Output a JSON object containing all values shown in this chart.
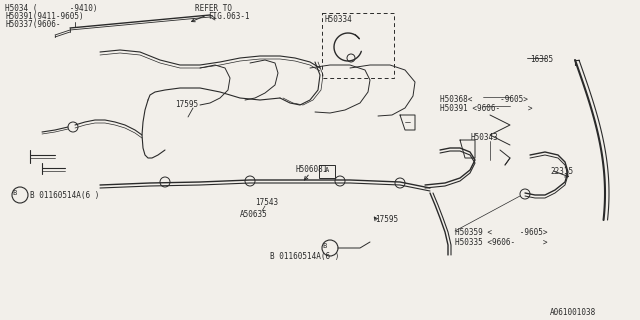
{
  "bg_color": "#f2efea",
  "line_color": "#2a2a2a",
  "text_color": "#2a2a2a",
  "fig_width": 6.4,
  "fig_height": 3.2,
  "dpi": 100,
  "labels": {
    "top_left": "H5034 (       -9410)",
    "top_left2": "H50391(9411-9605)",
    "top_left3": "H50337(9606-",
    "refer_to": "REFER TO",
    "fig_ref": "FIG.063-1",
    "h50334": "H50334",
    "h16385": "16385",
    "h50368": "H50368<      -9605>",
    "h50391b": "H50391 <9606-      >",
    "h50343": "H50343",
    "h22315": "22315",
    "h506081": "H506081",
    "label_a": "A",
    "h17543": "17543",
    "a50635": "A50635",
    "h17595a": "17595",
    "h17595b": "17595",
    "bolt_b1": "B 01160514A(6 )",
    "bolt_b2": "B 01160514A(6 )",
    "h50359": "H50359 <      -9605>",
    "h50335": "H50335 <9606-      >",
    "part_num": "A061001038"
  }
}
